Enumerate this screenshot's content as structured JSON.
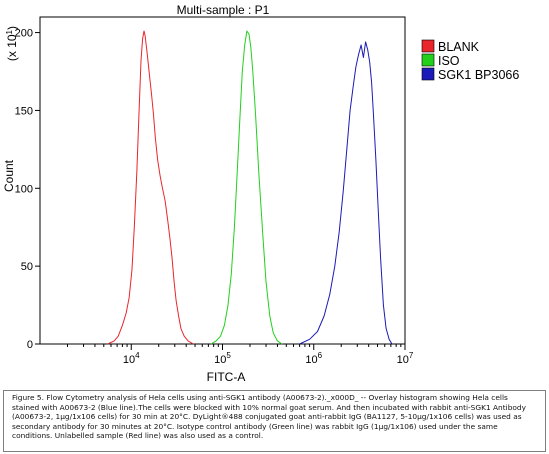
{
  "chart_data": {
    "type": "line",
    "title": "Multi-sample : P1",
    "xlabel": "FITC-A",
    "ylabel": "Count",
    "y_multiplier": "(x 10",
    "y_multiplier_exp": "1",
    "y_multiplier_close": ")",
    "xscale": "log",
    "xlim": [
      1000,
      10000000
    ],
    "ylim": [
      0,
      210
    ],
    "yticks": [
      0,
      50,
      100,
      150,
      200
    ],
    "ytick_labels": [
      "0",
      "50",
      "100",
      "150",
      "200"
    ],
    "xticks": [
      {
        "value": 10000,
        "base": "10",
        "exp": "4"
      },
      {
        "value": 100000,
        "base": "10",
        "exp": "5"
      },
      {
        "value": 1000000,
        "base": "10",
        "exp": "6"
      },
      {
        "value": 10000000,
        "base": "10",
        "exp": "7"
      }
    ],
    "grid": false,
    "legend_position": "right",
    "series": [
      {
        "name": "BLANK",
        "color": "#e8262b",
        "x": [
          5500,
          6500,
          7200,
          8000,
          8800,
          9500,
          10200,
          10800,
          11500,
          12200,
          12800,
          13300,
          13800,
          14200,
          14600,
          15000,
          15500,
          16000,
          16700,
          17500,
          18400,
          19500,
          20700,
          22000,
          23500,
          25000,
          26500,
          28000,
          29500,
          31000,
          33000,
          35000,
          38000,
          42000,
          48000
        ],
        "y": [
          0,
          2,
          5,
          12,
          20,
          30,
          48,
          75,
          110,
          150,
          182,
          196,
          201,
          198,
          192,
          186,
          178,
          170,
          160,
          148,
          132,
          118,
          108,
          100,
          92,
          80,
          68,
          55,
          40,
          28,
          18,
          10,
          5,
          2,
          0
        ]
      },
      {
        "name": "ISO",
        "color": "#22d01c",
        "x": [
          75000,
          85000,
          95000,
          105000,
          115000,
          125000,
          135000,
          145000,
          155000,
          165000,
          175000,
          185000,
          195000,
          205000,
          215000,
          230000,
          250000,
          275000,
          300000,
          330000,
          360000,
          400000,
          450000
        ],
        "y": [
          0,
          2,
          5,
          12,
          25,
          45,
          75,
          110,
          145,
          175,
          192,
          201,
          199,
          190,
          175,
          148,
          110,
          72,
          40,
          18,
          7,
          2,
          0
        ]
      },
      {
        "name": "SGK1 BP3066",
        "color": "#1a1ab8",
        "x": [
          700000,
          900000,
          1100000,
          1300000,
          1500000,
          1700000,
          1900000,
          2100000,
          2300000,
          2500000,
          2700000,
          2900000,
          3100000,
          3300000,
          3500000,
          3700000,
          3900000,
          4100000,
          4300000,
          4500000,
          4800000,
          5100000,
          5400000,
          5800000,
          6200000,
          6700000,
          7200000
        ],
        "y": [
          0,
          3,
          8,
          18,
          32,
          50,
          72,
          98,
          125,
          150,
          165,
          178,
          186,
          192,
          184,
          194,
          189,
          181,
          168,
          148,
          118,
          85,
          55,
          25,
          10,
          3,
          0
        ]
      }
    ]
  },
  "caption": {
    "text": "Figure 5. Flow Cytometry analysis of Hela cells using anti-SGK1 antibody (A00673-2)._x000D_ -- Overlay histogram showing Hela cells stained with A00673-2 (Blue line).The cells were blocked with 10% normal goat serum. And then incubated with rabbit anti-SGK1 Antibody (A00673-2, 1μg/1x106 cells) for 30 min at 20°C. DyLight®488 conjugated goat anti-rabbit IgG (BA1127, 5-10μg/1x106 cells) was used as secondary antibody for 30 minutes at 20°C. Isotype control antibody (Green line) was rabbit IgG (1μg/1x106) used under the same conditions. Unlabelled sample (Red line) was also used as a control."
  }
}
